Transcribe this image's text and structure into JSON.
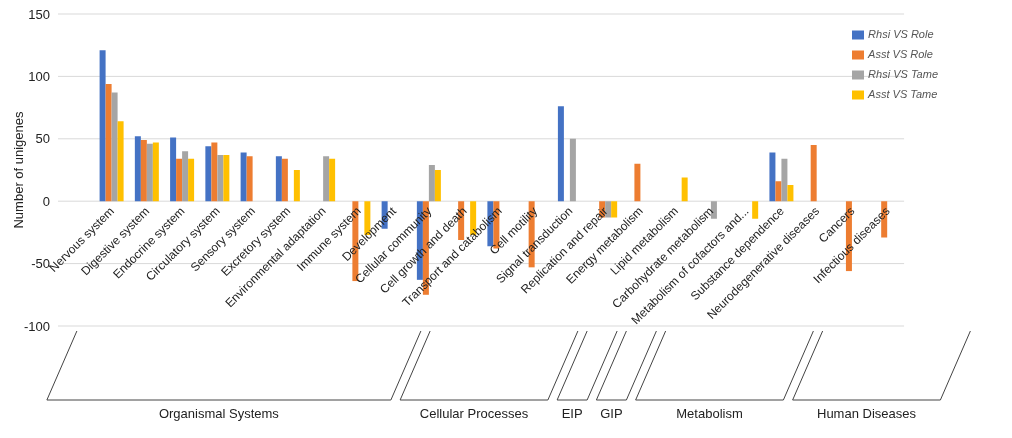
{
  "chart_data": {
    "type": "bar",
    "ylabel": "Number of unigenes",
    "categories": [
      null,
      "Nervous system",
      "Digestive system",
      "Endocrine system",
      "Circulatory system",
      "Sensory system",
      "Excretory system",
      "Environmental adaptation",
      "Immune system",
      "Development",
      "Cellular community",
      "Cell growth and death",
      "Transport and catabolism",
      "Cell motility",
      "Signal transduction",
      "Replication and repair",
      "Energy metabolism",
      "Lipid metabolism",
      "Carbohydrate metabolism",
      "Metabolism of cofactors and...",
      "Substance dependence",
      "Neurodegenerative diseases",
      "Cancers",
      "Infectious diseases"
    ],
    "series": [
      {
        "name": "Rhsi VS Role",
        "color": "#4472c4",
        "values": [
          null,
          121,
          52,
          51,
          44,
          39,
          36,
          null,
          null,
          -22,
          -63,
          null,
          -36,
          null,
          76,
          null,
          null,
          null,
          null,
          null,
          39,
          null,
          null,
          null
        ]
      },
      {
        "name": "Asst VS Role",
        "color": "#ed7d31",
        "values": [
          null,
          94,
          49,
          34,
          47,
          36,
          34,
          null,
          -64,
          null,
          -75,
          -31,
          -38,
          -53,
          null,
          -13,
          30,
          null,
          null,
          null,
          16,
          45,
          -56,
          -29
        ]
      },
      {
        "name": "Rhsi VS Tame",
        "color": "#a5a5a5",
        "values": [
          null,
          87,
          46,
          40,
          37,
          null,
          null,
          36,
          null,
          null,
          29,
          null,
          null,
          null,
          50,
          -13,
          null,
          null,
          -14,
          null,
          34,
          null,
          null,
          null
        ]
      },
      {
        "name": "Asst VS Tame",
        "color": "#ffc000",
        "values": [
          null,
          64,
          47,
          34,
          37,
          null,
          25,
          34,
          -27,
          null,
          25,
          -27,
          null,
          null,
          null,
          -13,
          null,
          19,
          null,
          -14,
          13,
          null,
          null,
          null
        ]
      }
    ],
    "ylim": [
      -100,
      150
    ],
    "yticks": [
      -100,
      -50,
      0,
      50,
      100,
      150
    ],
    "grid": "y",
    "legend": "top right",
    "annotations": [
      "Organismal Systems",
      "Cellular Processes",
      "EIP",
      "GIP",
      "Metabolism",
      "Human Diseases"
    ]
  }
}
